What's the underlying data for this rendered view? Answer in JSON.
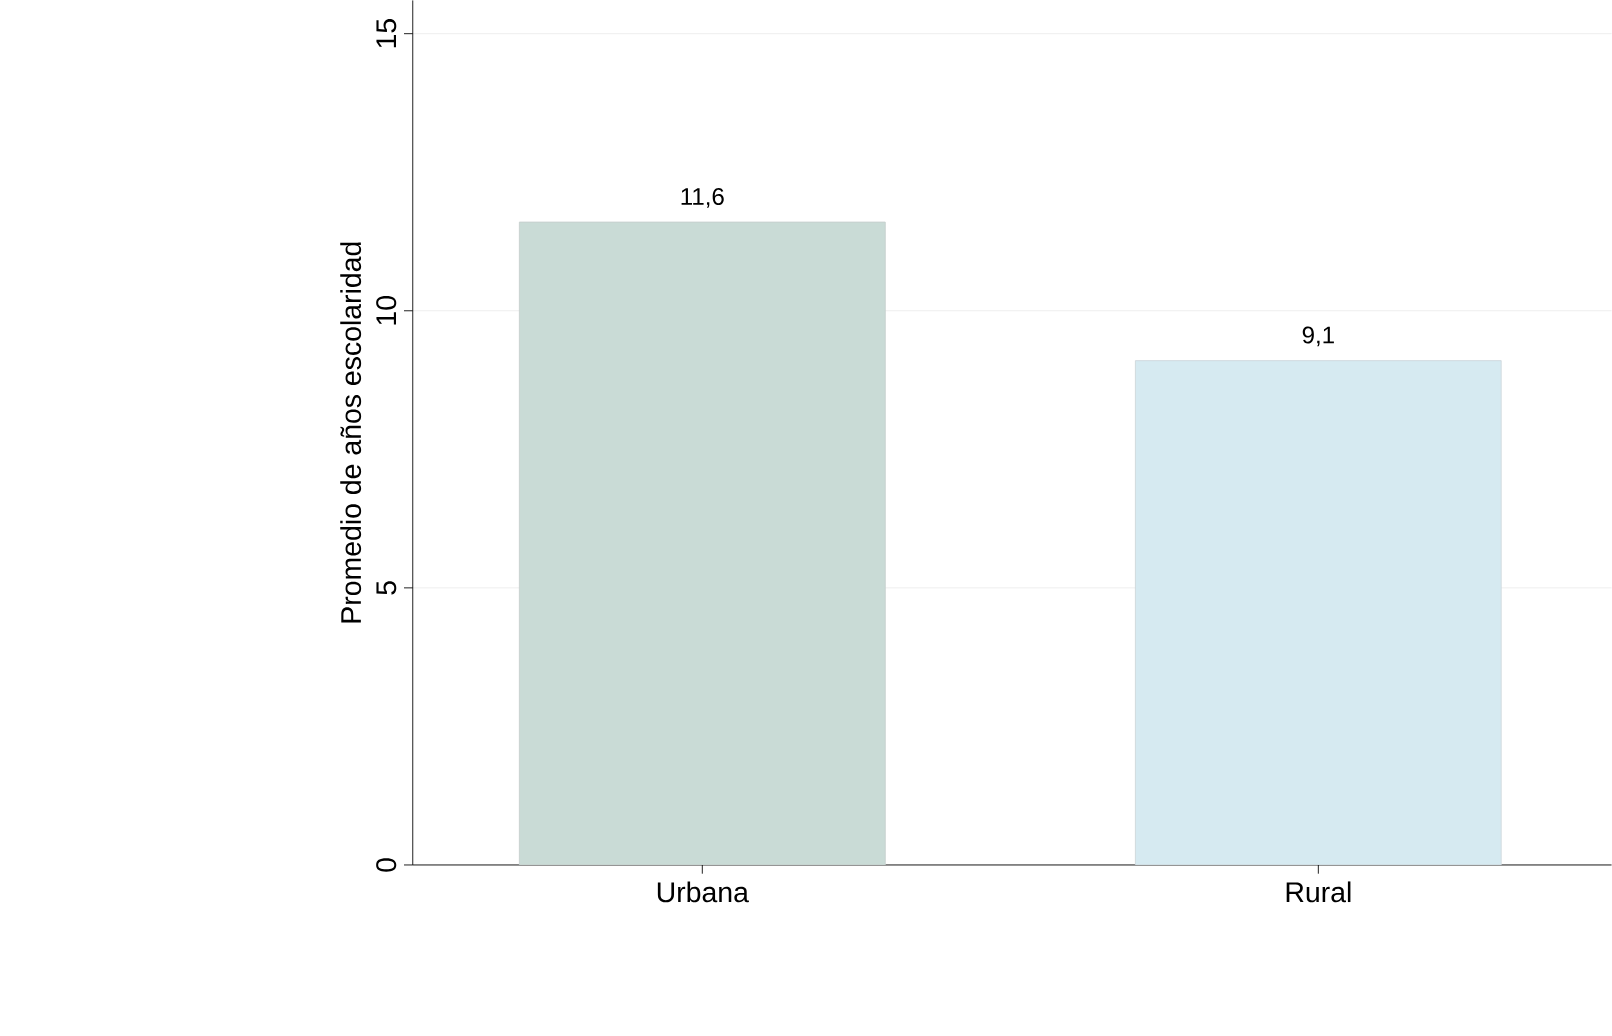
{
  "chart_data": {
    "type": "bar",
    "ylabel": "Promedio de años escolaridad",
    "categories": [
      "Urbana",
      "Rural"
    ],
    "values": [
      11.6,
      9.1
    ],
    "value_labels": [
      "11,6",
      "9,1"
    ],
    "colors": [
      "#c9dbd6",
      "#d6eaf1"
    ],
    "ylim": [
      0,
      15.6
    ],
    "yticks": [
      0,
      5,
      10,
      15
    ],
    "grid": "y"
  }
}
